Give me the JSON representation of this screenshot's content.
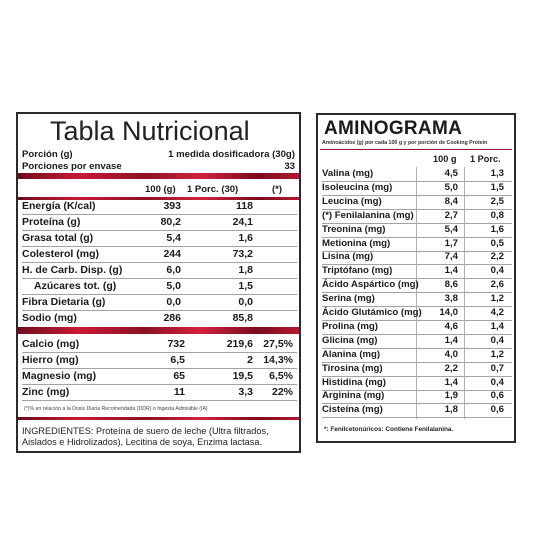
{
  "nutrition": {
    "title": "Tabla Nutricional",
    "portion_label": "Porción (g)",
    "portion_value": "1 medida dosificadora (30g)",
    "portions_label": "Porciones por envase",
    "portions_value": "33",
    "columns": [
      "100 (g)",
      "1 Porc. (30)",
      "(*)"
    ],
    "rows": [
      {
        "name": "Energía (K/cal)",
        "per100": "393",
        "per_portion": "118",
        "pct": ""
      },
      {
        "name": "Proteína (g)",
        "per100": "80,2",
        "per_portion": "24,1",
        "pct": ""
      },
      {
        "name": "Grasa total (g)",
        "per100": "5,4",
        "per_portion": "1,6",
        "pct": ""
      },
      {
        "name": "Colesterol (mg)",
        "per100": "244",
        "per_portion": "73,2",
        "pct": ""
      },
      {
        "name": "H. de Carb. Disp. (g)",
        "per100": "6,0",
        "per_portion": "1,8",
        "pct": ""
      },
      {
        "name": "Azúcares tot. (g)",
        "per100": "5,0",
        "per_portion": "1,5",
        "pct": ""
      },
      {
        "name": "Fibra Dietaria (g)",
        "per100": "0,0",
        "per_portion": "0,0",
        "pct": ""
      },
      {
        "name": "Sodio (mg)",
        "per100": "286",
        "per_portion": "85,8",
        "pct": ""
      }
    ],
    "minerals": [
      {
        "name": "Calcio (mg)",
        "per100": "732",
        "per_portion": "219,6",
        "pct": "27,5%"
      },
      {
        "name": "Hierro (mg)",
        "per100": "6,5",
        "per_portion": "2",
        "pct": "14,3%"
      },
      {
        "name": "Magnesio (mg)",
        "per100": "65",
        "per_portion": "19,5",
        "pct": "6,5%"
      },
      {
        "name": "Zinc (mg)",
        "per100": "11",
        "per_portion": "3,3",
        "pct": "22%"
      }
    ],
    "footnote": "(*)% en relación a la Dosis Diaria Recomendada (DDR) o Ingesta Admisible (IA)",
    "ingredients": "INGREDIENTES: Proteína de suero de leche (Ultra filtrados, Aislados e Hidrolizados), Lecitina de soya, Enzima lactasa."
  },
  "aminogram": {
    "title": "AMINOGRAMA",
    "subtitle": "Aminoácidos (g) por cada 100 g y por porción de Cooking Protein",
    "columns": [
      "100 g",
      "1 Porc."
    ],
    "rows": [
      {
        "name": "Valina (mg)",
        "per100": "4,5",
        "per_portion": "1,3"
      },
      {
        "name": "Isoleucina (mg)",
        "per100": "5,0",
        "per_portion": "1,5"
      },
      {
        "name": "Leucina (mg)",
        "per100": "8,4",
        "per_portion": "2,5"
      },
      {
        "name": "(*) Fenilalanina (mg)",
        "per100": "2,7",
        "per_portion": "0,8"
      },
      {
        "name": "Treonina (mg)",
        "per100": "5,4",
        "per_portion": "1,6"
      },
      {
        "name": "Metionina (mg)",
        "per100": "1,7",
        "per_portion": "0,5"
      },
      {
        "name": "Lisina (mg)",
        "per100": "7,4",
        "per_portion": "2,2"
      },
      {
        "name": "Triptófano (mg)",
        "per100": "1,4",
        "per_portion": "0,4"
      },
      {
        "name": "Ácido Aspártico (mg)",
        "per100": "8,6",
        "per_portion": "2,6"
      },
      {
        "name": "Serina (mg)",
        "per100": "3,8",
        "per_portion": "1,2"
      },
      {
        "name": "Ácido Glutámico (mg)",
        "per100": "14,0",
        "per_portion": "4,2"
      },
      {
        "name": "Prolina (mg)",
        "per100": "4,6",
        "per_portion": "1,4"
      },
      {
        "name": "Glicina (mg)",
        "per100": "1,4",
        "per_portion": "0,4"
      },
      {
        "name": "Alanina (mg)",
        "per100": "4,0",
        "per_portion": "1,2"
      },
      {
        "name": "Tirosina (mg)",
        "per100": "2,2",
        "per_portion": "0,7"
      },
      {
        "name": "Histidina (mg)",
        "per100": "1,4",
        "per_portion": "0,4"
      },
      {
        "name": "Arginina (mg)",
        "per100": "1,9",
        "per_portion": "0,6"
      },
      {
        "name": "Cisteína (mg)",
        "per100": "1,8",
        "per_portion": "0,6"
      }
    ],
    "footnote": "*: Fenilcetonúricos: Contiene Fenilalanina."
  },
  "colors": {
    "accent_red": "#c91a36",
    "border": "#2a2a2a"
  }
}
